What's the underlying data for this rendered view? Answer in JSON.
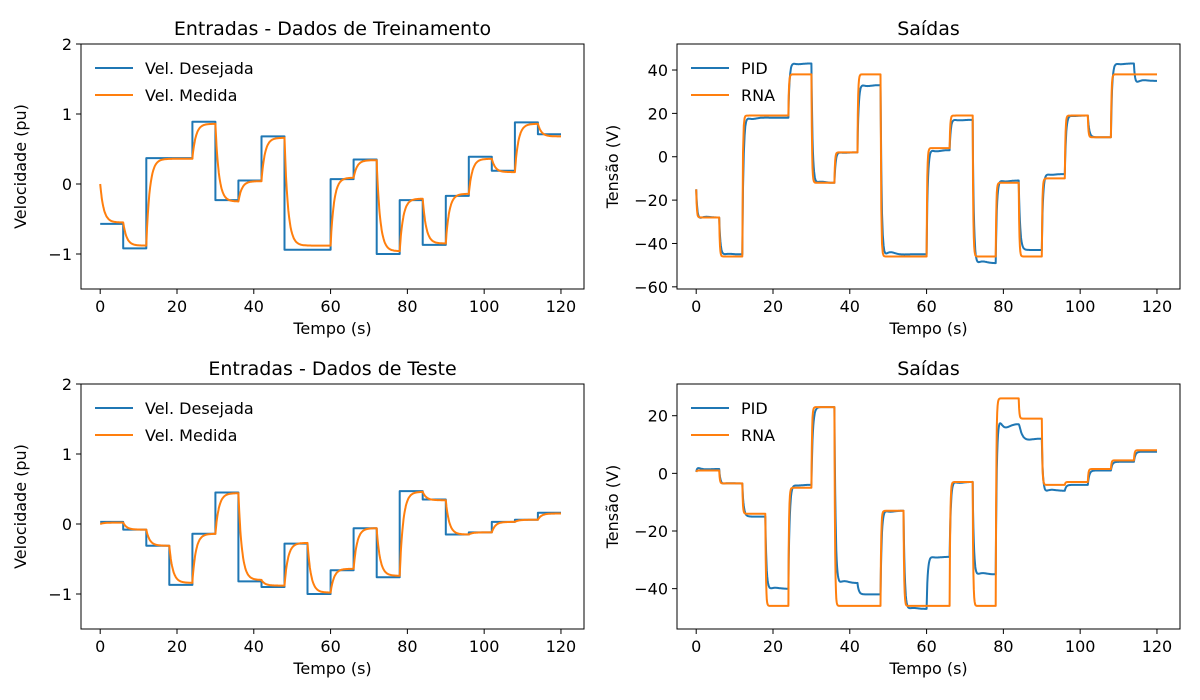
{
  "colors": {
    "series1": "#1f77b4",
    "series2": "#ff7f0e",
    "axis": "#000000"
  },
  "chart_data": [
    {
      "type": "line",
      "title": "Entradas - Dados de Treinamento",
      "xlabel": "Tempo (s)",
      "ylabel": "Velocidade (pu)",
      "xlim": [
        -5,
        126
      ],
      "ylim": [
        -1.5,
        2
      ],
      "xticks": [
        0,
        20,
        40,
        60,
        80,
        100,
        120
      ],
      "yticks": [
        -1,
        0,
        1,
        2
      ],
      "legend_position": "upper-left",
      "grid": false,
      "series": [
        {
          "name": "Vel. Desejada",
          "color": "#1f77b4",
          "steps": {
            "t": [
              0,
              6,
              12,
              24,
              30,
              36,
              42,
              48,
              60,
              66,
              72,
              78,
              84,
              90,
              96,
              102,
              108,
              114,
              120
            ],
            "v": [
              -0.57,
              -0.92,
              0.37,
              0.89,
              -0.23,
              0.05,
              0.68,
              -0.94,
              0.07,
              0.35,
              -1.0,
              -0.23,
              -0.87,
              -0.17,
              0.39,
              0.19,
              0.88,
              0.71
            ]
          },
          "tau": 0
        },
        {
          "name": "Vel. Medida",
          "color": "#ff7f0e",
          "start": 0.0,
          "steps": {
            "t": [
              0,
              6,
              12,
              24,
              30,
              36,
              42,
              48,
              60,
              66,
              72,
              78,
              84,
              90,
              96,
              102,
              108,
              114,
              120
            ],
            "v": [
              -0.55,
              -0.88,
              0.36,
              0.86,
              -0.25,
              0.04,
              0.66,
              -0.88,
              0.09,
              0.34,
              -0.96,
              -0.21,
              -0.85,
              -0.14,
              0.36,
              0.17,
              0.86,
              0.68
            ]
          },
          "tau": 0.9
        }
      ]
    },
    {
      "type": "line",
      "title": "Saídas",
      "xlabel": "Tempo (s)",
      "ylabel": "Tensão (V)",
      "xlim": [
        -5,
        126
      ],
      "ylim": [
        -61,
        52
      ],
      "xticks": [
        0,
        20,
        40,
        60,
        80,
        100,
        120
      ],
      "yticks": [
        -60,
        -40,
        -20,
        0,
        20,
        40
      ],
      "legend_position": "upper-left",
      "grid": false,
      "series": [
        {
          "name": "PID",
          "color": "#1f77b4",
          "start": -15,
          "steps": {
            "t": [
              0,
              6,
              12,
              24,
              30,
              36,
              42,
              48,
              60,
              66,
              72,
              78,
              84,
              90,
              96,
              102,
              108,
              114,
              120
            ],
            "v": [
              -28,
              -45,
              18,
              43,
              -12,
              2,
              33,
              -45,
              3,
              17,
              -49,
              -11,
              -43,
              -8,
              19,
              9,
              43,
              35
            ]
          },
          "overshoot": [
            -3,
            -2,
            6,
            3,
            -5,
            1.5,
            4,
            -10,
            5,
            2,
            -7,
            4,
            0,
            3,
            2,
            0,
            3,
            -3
          ],
          "tau": 0.35,
          "osc": 1.2
        },
        {
          "name": "RNA",
          "color": "#ff7f0e",
          "start": -15,
          "steps": {
            "t": [
              0,
              6,
              12,
              24,
              30,
              36,
              42,
              48,
              60,
              66,
              72,
              78,
              84,
              90,
              96,
              102,
              108,
              114,
              120
            ],
            "v": [
              -28,
              -46,
              19,
              38,
              -12,
              2,
              38,
              -46,
              4,
              19,
              -46,
              -12,
              -46,
              -10,
              19,
              9,
              38,
              38
            ]
          },
          "tau": 0.15
        }
      ]
    },
    {
      "type": "line",
      "title": "Entradas - Dados de Teste",
      "xlabel": "Tempo (s)",
      "ylabel": "Velocidade (pu)",
      "xlim": [
        -5,
        126
      ],
      "ylim": [
        -1.5,
        2
      ],
      "xticks": [
        0,
        20,
        40,
        60,
        80,
        100,
        120
      ],
      "yticks": [
        -1,
        0,
        1,
        2
      ],
      "legend_position": "upper-left",
      "grid": false,
      "series": [
        {
          "name": "Vel. Desejada",
          "color": "#1f77b4",
          "steps": {
            "t": [
              0,
              6,
              12,
              18,
              24,
              30,
              36,
              42,
              48,
              54,
              60,
              66,
              72,
              78,
              84,
              90,
              96,
              102,
              108,
              114,
              120
            ],
            "v": [
              0.03,
              -0.08,
              -0.31,
              -0.87,
              -0.14,
              0.45,
              -0.82,
              -0.9,
              -0.28,
              -1.0,
              -0.66,
              -0.06,
              -0.76,
              0.47,
              0.35,
              -0.15,
              -0.12,
              0.03,
              0.06,
              0.16
            ]
          },
          "tau": 0
        },
        {
          "name": "Vel. Medida",
          "color": "#ff7f0e",
          "start": 0.0,
          "steps": {
            "t": [
              0,
              6,
              12,
              18,
              24,
              30,
              36,
              42,
              48,
              54,
              60,
              66,
              72,
              78,
              84,
              90,
              96,
              102,
              108,
              114,
              120
            ],
            "v": [
              0.02,
              -0.08,
              -0.31,
              -0.84,
              -0.14,
              0.44,
              -0.8,
              -0.88,
              -0.27,
              -0.98,
              -0.64,
              -0.06,
              -0.74,
              0.46,
              0.34,
              -0.15,
              -0.12,
              0.03,
              0.06,
              0.15
            ]
          },
          "tau": 0.9
        }
      ]
    },
    {
      "type": "line",
      "title": "Saídas",
      "xlabel": "Tempo (s)",
      "ylabel": "Tensão (V)",
      "xlim": [
        -5,
        126
      ],
      "ylim": [
        -54,
        31
      ],
      "xticks": [
        0,
        20,
        40,
        60,
        80,
        100,
        120
      ],
      "yticks": [
        -40,
        -20,
        0,
        20
      ],
      "legend_position": "upper-left",
      "grid": false,
      "series": [
        {
          "name": "PID",
          "color": "#1f77b4",
          "start": 0.5,
          "steps": {
            "t": [
              0,
              6,
              12,
              18,
              24,
              30,
              36,
              42,
              48,
              54,
              60,
              66,
              72,
              78,
              84,
              90,
              96,
              102,
              108,
              114,
              120
            ],
            "v": [
              1.5,
              -3.5,
              -15,
              -40,
              -4,
              23,
              -38,
              -42,
              -13,
              -47,
              -29,
              -3,
              -35,
              17,
              12,
              -6,
              -4,
              1,
              4,
              7.5
            ]
          },
          "overshoot": [
            1,
            -1,
            0,
            -3,
            2,
            0,
            -6,
            0,
            3,
            -3,
            2,
            3,
            -4,
            11,
            3,
            -3,
            0,
            0,
            0,
            0
          ],
          "tau": 0.35,
          "osc": 1.2
        },
        {
          "name": "RNA",
          "color": "#ff7f0e",
          "start": 0.5,
          "steps": {
            "t": [
              0,
              6,
              12,
              18,
              24,
              30,
              36,
              42,
              48,
              54,
              60,
              66,
              72,
              78,
              84,
              90,
              96,
              102,
              108,
              114,
              120
            ],
            "v": [
              1,
              -3.5,
              -14,
              -46,
              -5,
              23,
              -46,
              -46,
              -13,
              -46,
              -46,
              -3,
              -46,
              26,
              19,
              -4,
              -3,
              1.5,
              4.5,
              8
            ]
          },
          "tau": 0.15
        }
      ]
    }
  ]
}
